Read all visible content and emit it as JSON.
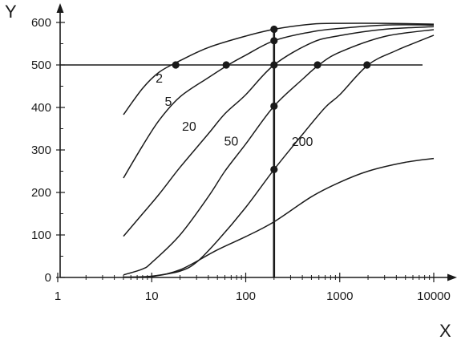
{
  "chart_data": {
    "type": "line",
    "xscale": "log",
    "xlim": [
      1,
      10000
    ],
    "ylim": [
      0,
      620
    ],
    "xlabel": "X",
    "ylabel": "Y",
    "xticks": [
      {
        "value": 1,
        "label": "1"
      },
      {
        "value": 10,
        "label": "10"
      },
      {
        "value": 100,
        "label": "100"
      },
      {
        "value": 1000,
        "label": "1000"
      },
      {
        "value": 10000,
        "label": "10000"
      }
    ],
    "yticks": [
      {
        "value": 0,
        "label": "0"
      },
      {
        "value": 100,
        "label": "100"
      },
      {
        "value": 200,
        "label": "200"
      },
      {
        "value": 300,
        "label": "300"
      },
      {
        "value": 400,
        "label": "400"
      },
      {
        "value": 500,
        "label": "500"
      },
      {
        "value": 600,
        "label": "600"
      }
    ],
    "reference_lines": {
      "horizontal_y": 500,
      "vertical_x": 200
    },
    "series": [
      {
        "label": "2",
        "label_at": [
          12,
          470
        ],
        "points": [
          [
            5,
            383
          ],
          [
            8,
            445
          ],
          [
            12,
            483
          ],
          [
            20,
            510
          ],
          [
            40,
            541
          ],
          [
            100,
            568
          ],
          [
            200,
            584
          ],
          [
            500,
            596
          ],
          [
            1000,
            598
          ],
          [
            3000,
            598
          ],
          [
            10000,
            596
          ]
        ]
      },
      {
        "label": "5",
        "label_at": [
          15,
          415
        ],
        "points": [
          [
            5,
            234
          ],
          [
            8,
            310
          ],
          [
            12,
            370
          ],
          [
            20,
            425
          ],
          [
            40,
            470
          ],
          [
            65,
            500
          ],
          [
            100,
            523
          ],
          [
            200,
            557
          ],
          [
            500,
            578
          ],
          [
            1000,
            586
          ],
          [
            3000,
            594
          ],
          [
            10000,
            594
          ]
        ]
      },
      {
        "label": "20",
        "label_at": [
          25,
          357
        ],
        "points": [
          [
            5,
            97
          ],
          [
            8,
            150
          ],
          [
            12,
            196
          ],
          [
            20,
            259
          ],
          [
            40,
            338
          ],
          [
            60,
            385
          ],
          [
            100,
            430
          ],
          [
            200,
            500
          ],
          [
            500,
            552
          ],
          [
            1000,
            569
          ],
          [
            3000,
            584
          ],
          [
            10000,
            590
          ]
        ]
      },
      {
        "label": "50",
        "label_at": [
          70,
          322
        ],
        "points": [
          [
            5,
            6
          ],
          [
            8,
            20
          ],
          [
            10,
            35
          ],
          [
            20,
            100
          ],
          [
            40,
            190
          ],
          [
            60,
            250
          ],
          [
            100,
            314
          ],
          [
            200,
            403
          ],
          [
            400,
            466
          ],
          [
            600,
            500
          ],
          [
            1000,
            530
          ],
          [
            3000,
            567
          ],
          [
            10000,
            583
          ]
        ]
      },
      {
        "label": "200",
        "label_at": [
          400,
          321
        ],
        "points": [
          [
            10,
            2
          ],
          [
            20,
            15
          ],
          [
            30,
            36
          ],
          [
            50,
            86
          ],
          [
            100,
            165
          ],
          [
            200,
            254
          ],
          [
            400,
            336
          ],
          [
            700,
            400
          ],
          [
            1000,
            430
          ],
          [
            2000,
            500
          ],
          [
            4000,
            534
          ],
          [
            10000,
            570
          ]
        ]
      },
      {
        "label": "",
        "points": [
          [
            5,
            1
          ],
          [
            10,
            3
          ],
          [
            20,
            18
          ],
          [
            50,
            65
          ],
          [
            100,
            96
          ],
          [
            200,
            131
          ],
          [
            500,
            190
          ],
          [
            1000,
            224
          ],
          [
            2000,
            250
          ],
          [
            5000,
            271
          ],
          [
            10000,
            280
          ]
        ]
      }
    ],
    "markers": [
      [
        18,
        500
      ],
      [
        62,
        500
      ],
      [
        200,
        500
      ],
      [
        580,
        500
      ],
      [
        1950,
        500
      ],
      [
        200,
        584
      ],
      [
        200,
        557
      ],
      [
        200,
        403
      ],
      [
        200,
        254
      ]
    ],
    "grid": false,
    "legend": "none"
  }
}
